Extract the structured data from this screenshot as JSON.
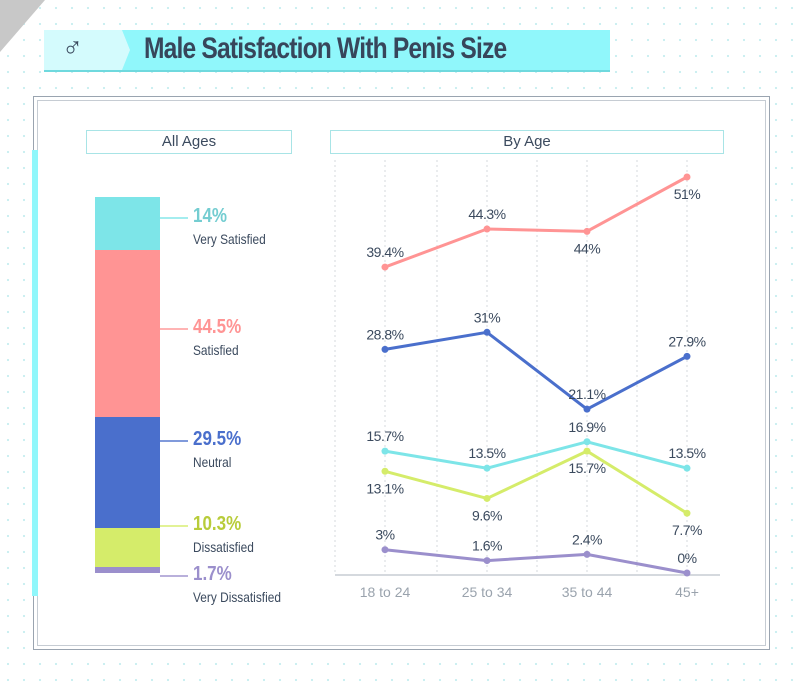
{
  "header": {
    "icon": "male-symbol-icon",
    "symbol": "♂",
    "title": "Male Satisfaction With Penis Size"
  },
  "colors": {
    "very_satisfied": "#7de5e8",
    "satisfied": "#ff9494",
    "neutral": "#4a6fcc",
    "dissatisfied": "#d5ec6a",
    "very_dissatisfied": "#9b8fcc"
  },
  "chart_data": [
    {
      "type": "bar",
      "title": "All Ages",
      "stacked": true,
      "categories": [
        "Very Satisfied",
        "Satisfied",
        "Neutral",
        "Dissatisfied",
        "Very Dissatisfied"
      ],
      "values": [
        14,
        44.5,
        29.5,
        10.3,
        1.7
      ],
      "labels": [
        "14%",
        "44.5%",
        "29.5%",
        "10.3%",
        "1.7%"
      ],
      "label_colors": [
        "#74cdd1",
        "#ff9494",
        "#4a6fcc",
        "#b8cc3a",
        "#9b8fcc"
      ]
    },
    {
      "type": "line",
      "title": "By Age",
      "categories": [
        "18 to 24",
        "25 to 34",
        "35 to 44",
        "45+"
      ],
      "ylim": [
        0,
        51
      ],
      "grid": "vertical dashed",
      "series": [
        {
          "key": "satisfied",
          "values": [
            39.4,
            44.3,
            44,
            51
          ],
          "labels": [
            "39.4%",
            "44.3%",
            "44%",
            "51%"
          ],
          "label_pos": [
            "above",
            "above",
            "below",
            "below"
          ]
        },
        {
          "key": "neutral",
          "values": [
            28.8,
            31,
            21.1,
            27.9
          ],
          "labels": [
            "28.8%",
            "31%",
            "21.1%",
            "27.9%"
          ],
          "label_pos": [
            "above",
            "above",
            "above",
            "above"
          ]
        },
        {
          "key": "very_satisfied",
          "values": [
            15.7,
            13.5,
            16.9,
            13.5
          ],
          "labels": [
            "15.7%",
            "13.5%",
            "16.9%",
            "13.5%"
          ],
          "label_pos": [
            "above",
            "above",
            "above",
            "above"
          ]
        },
        {
          "key": "dissatisfied",
          "values": [
            13.1,
            9.6,
            15.7,
            7.7
          ],
          "labels": [
            "13.1%",
            "9.6%",
            "15.7%",
            "7.7%"
          ],
          "label_pos": [
            "below",
            "below",
            "below",
            "below"
          ]
        },
        {
          "key": "very_dissatisfied",
          "values": [
            3,
            1.6,
            2.4,
            0
          ],
          "labels": [
            "3%",
            "1.6%",
            "2.4%",
            "0%"
          ],
          "label_pos": [
            "above",
            "above",
            "above",
            "above"
          ]
        }
      ]
    }
  ]
}
